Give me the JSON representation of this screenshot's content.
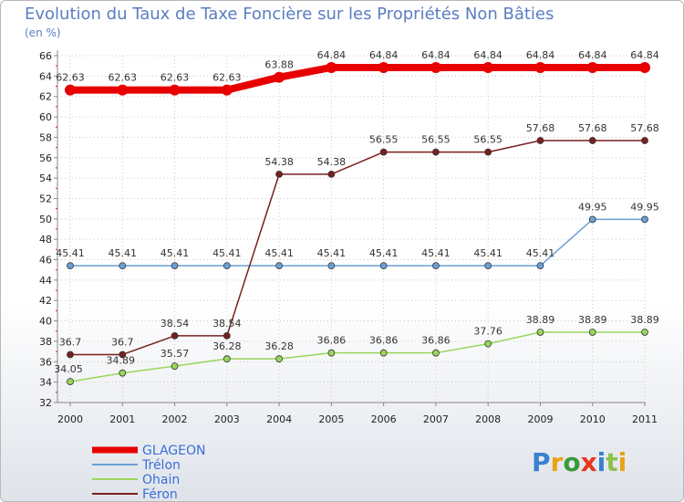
{
  "chart_data": {
    "type": "line",
    "title": "Evolution du Taux de Taxe Foncière sur les Propriétés Non Bâties",
    "ylabel": "(en %)",
    "x": [
      "2000",
      "2001",
      "2002",
      "2003",
      "2004",
      "2005",
      "2006",
      "2007",
      "2008",
      "2009",
      "2010",
      "2011"
    ],
    "ylim": [
      32,
      66
    ],
    "yticks": [
      32,
      34,
      36,
      38,
      40,
      42,
      44,
      46,
      48,
      50,
      52,
      54,
      56,
      58,
      60,
      62,
      64,
      66
    ],
    "series": [
      {
        "name": "GLAGEON",
        "color": "#e80000",
        "values": [
          62.63,
          62.63,
          62.63,
          62.63,
          63.88,
          64.84,
          64.84,
          64.84,
          64.84,
          64.84,
          64.84,
          64.84
        ],
        "labels": [
          "62.63",
          "62.63",
          "62.63",
          "62.63",
          "63.88",
          "64.84",
          "64.84",
          "64.84",
          "64.84",
          "64.84",
          "64.84",
          "64.84"
        ]
      },
      {
        "name": "Trélon",
        "color": "#6a9fd4",
        "values": [
          45.41,
          45.41,
          45.41,
          45.41,
          45.41,
          45.41,
          45.41,
          45.41,
          45.41,
          45.41,
          49.95,
          49.95
        ],
        "labels": [
          "45.41",
          "45.41",
          "45.41",
          "45.41",
          "45.41",
          "45.41",
          "45.41",
          "45.41",
          "45.41",
          "45.41",
          "49.95",
          "49.95"
        ]
      },
      {
        "name": "Ohain",
        "color": "#99d65a",
        "values": [
          34.05,
          34.89,
          35.57,
          36.28,
          36.28,
          36.86,
          36.86,
          36.86,
          37.76,
          38.89,
          38.89,
          38.89
        ],
        "labels": [
          "34.05",
          "34.89",
          "35.57",
          "36.28",
          "36.28",
          "36.86",
          "36.86",
          "36.86",
          "37.76",
          "38.89",
          "38.89",
          "38.89"
        ]
      },
      {
        "name": "Féron",
        "color": "#7a1f1f",
        "values": [
          36.7,
          36.7,
          38.54,
          38.54,
          54.38,
          54.38,
          56.55,
          56.55,
          56.55,
          57.68,
          57.68,
          57.68
        ],
        "labels": [
          "36.7",
          "36.7",
          "38.54",
          "38.54",
          "54.38",
          "54.38",
          "56.55",
          "56.55",
          "56.55",
          "57.68",
          "57.68",
          "57.68"
        ]
      }
    ]
  },
  "legend": [
    {
      "name": "GLAGEON",
      "color": "#e80000",
      "text_color": "#3b6fd8"
    },
    {
      "name": "Trélon",
      "color": "#6a9fd4",
      "text_color": "#3b6fd8"
    },
    {
      "name": "Ohain",
      "color": "#99d65a",
      "text_color": "#3b6fd8"
    },
    {
      "name": "Féron",
      "color": "#7a1f1f",
      "text_color": "#3b6fd8"
    }
  ],
  "logo": {
    "text": "Proxiti"
  }
}
